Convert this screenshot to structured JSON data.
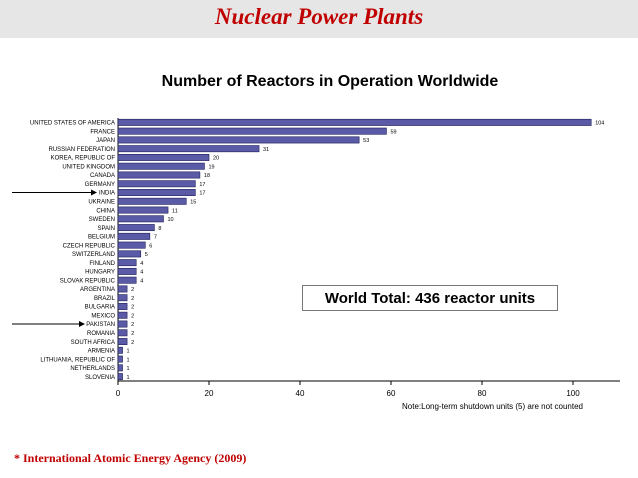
{
  "slide": {
    "title": "Nuclear Power Plants",
    "source": "* International Atomic Energy Agency (2009)"
  },
  "chart_data": {
    "type": "bar",
    "orientation": "horizontal",
    "title": "Number of Reactors in Operation Worldwide",
    "categories": [
      "UNITED STATES OF AMERICA",
      "FRANCE",
      "JAPAN",
      "RUSSIAN FEDERATION",
      "KOREA, REPUBLIC OF",
      "UNITED KINGDOM",
      "CANADA",
      "GERMANY",
      "INDIA",
      "UKRAINE",
      "CHINA",
      "SWEDEN",
      "SPAIN",
      "BELGIUM",
      "CZECH REPUBLIC",
      "SWITZERLAND",
      "FINLAND",
      "HUNGARY",
      "SLOVAK REPUBLIC",
      "ARGENTINA",
      "BRAZIL",
      "BULGARIA",
      "MEXICO",
      "PAKISTAN",
      "ROMANIA",
      "SOUTH AFRICA",
      "ARMENIA",
      "LITHUANIA, REPUBLIC OF",
      "NETHERLANDS",
      "SLOVENIA"
    ],
    "values": [
      104,
      59,
      53,
      31,
      20,
      19,
      18,
      17,
      17,
      15,
      11,
      10,
      8,
      7,
      6,
      5,
      4,
      4,
      4,
      2,
      2,
      2,
      2,
      2,
      2,
      2,
      1,
      1,
      1,
      1
    ],
    "xlim": [
      0,
      110
    ],
    "xticks": [
      0,
      20,
      40,
      60,
      80,
      100
    ],
    "highlighted": [
      "INDIA",
      "PAKISTAN"
    ],
    "annotation": "World Total:  436 reactor units",
    "note": "Note:Long-term shutdown units (5) are not counted",
    "bar_color": "#5a5aa6",
    "grid": false,
    "legend": "none"
  }
}
